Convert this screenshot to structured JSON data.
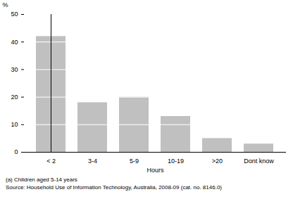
{
  "chart_data": {
    "type": "bar",
    "y_label": "%",
    "x_label": "Hours",
    "categories": [
      "< 2",
      "3-4",
      "5-9",
      "10-19",
      ">20",
      "Dont know"
    ],
    "values": [
      42,
      18,
      20,
      13,
      5,
      3
    ],
    "color": "#c0c0c0",
    "ylim": [
      0,
      50
    ],
    "yticks": [
      0,
      10,
      20,
      30,
      40,
      50
    ],
    "grid": true,
    "annotations": [
      "(a) Children aged 5-14 years",
      "Source: Household Use of Information Technology, Australia, 2008-09 (cat. no. 8146.0)"
    ]
  }
}
